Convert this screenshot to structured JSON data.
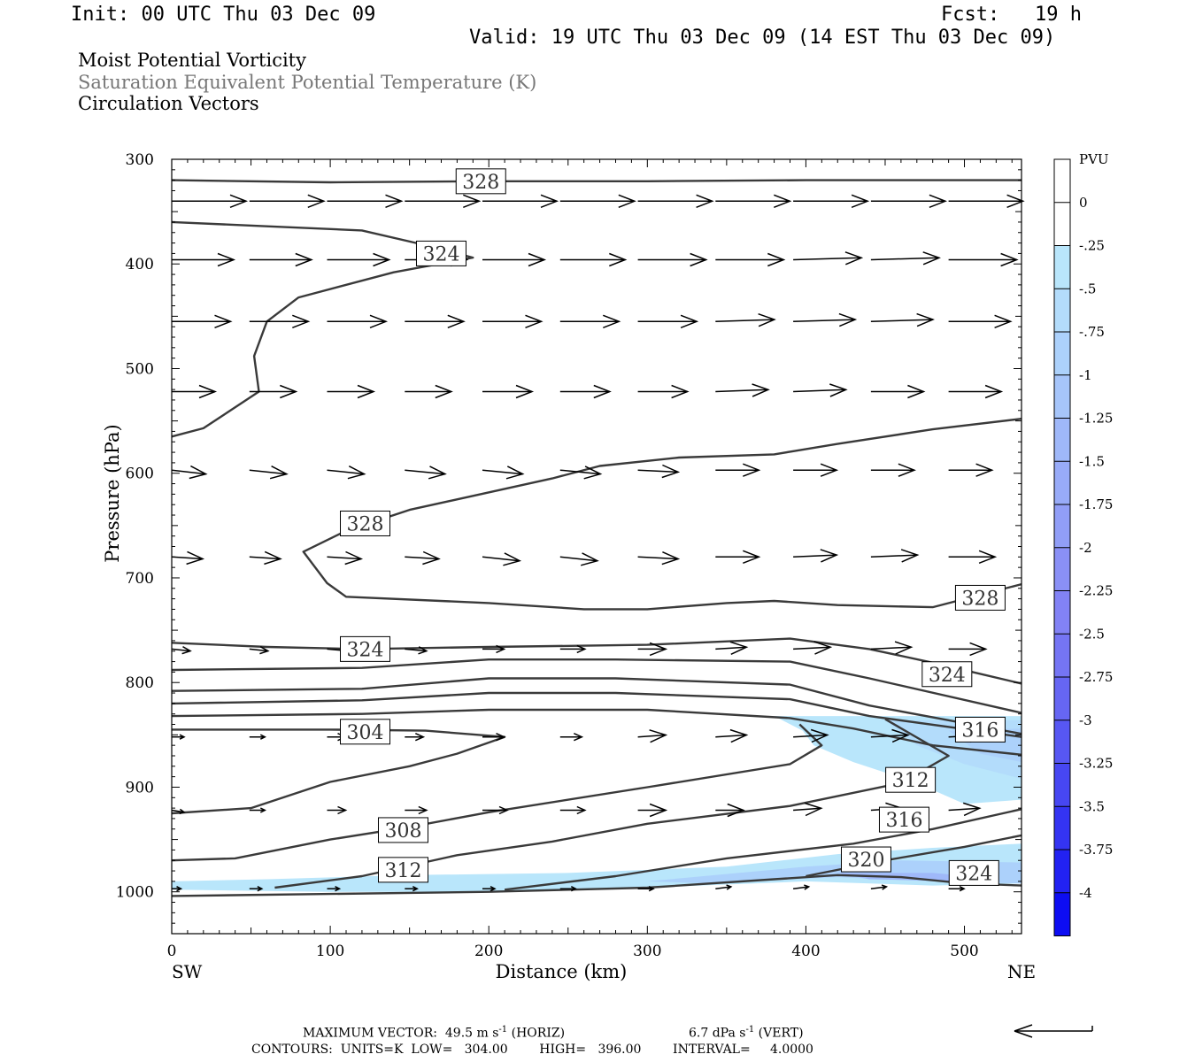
{
  "header": {
    "init": "Init: 00 UTC Thu 03 Dec 09",
    "fcst": "Fcst:   19 h",
    "valid": "Valid: 19 UTC Thu 03 Dec 09 (14 EST Thu 03 Dec 09)"
  },
  "titles": {
    "line1": "Moist Potential Vorticity",
    "line2": "Saturation Equivalent Potential Temperature (K)",
    "line3": "Circulation Vectors"
  },
  "colors": {
    "line1": "#000000",
    "line2": "#777777",
    "line3": "#000000",
    "contour": "#3a3a3a",
    "vector": "#000000"
  },
  "footer": {
    "max_vector": "MAXIMUM VECTOR:  49.5 m s",
    "horiz": "(HORIZ)",
    "vert_val": "6.7 dPa s",
    "vert": "(VERT)",
    "contours": "CONTOURS:  UNITS=K  LOW=   304.00        HIGH=   396.00        INTERVAL=     4.0000"
  },
  "chart_data": {
    "type": "cross-section",
    "xlabel": "Distance (km)",
    "ylabel": "Pressure (hPa)",
    "xlim": [
      0,
      536
    ],
    "ylim": [
      1040,
      300
    ],
    "x_ticks": [
      0,
      100,
      200,
      300,
      400,
      500
    ],
    "y_ticks": [
      300,
      400,
      500,
      600,
      700,
      800,
      900,
      1000
    ],
    "x_end_labels": {
      "left": "SW",
      "right": "NE"
    },
    "colorbar": {
      "unit": "PVU",
      "labels": [
        "0",
        "-.25",
        "-.5",
        "-.75",
        "-1",
        "-1.25",
        "-1.5",
        "-1.75",
        "-2",
        "-2.25",
        "-2.5",
        "-2.75",
        "-3",
        "-3.25",
        "-3.5",
        "-3.75",
        "-4"
      ],
      "colors": [
        "#ffffff",
        "#ffffff",
        "#b9e6fb",
        "#b3dcfb",
        "#acd1fb",
        "#a6c5fa",
        "#9fb8f9",
        "#98abf8",
        "#919ef7",
        "#8a90f6",
        "#8282f5",
        "#7575f4",
        "#6666f3",
        "#5757f3",
        "#4747f2",
        "#3434f2",
        "#2222f2",
        "#0d0df2"
      ]
    },
    "contour_labels": [
      {
        "text": "328",
        "x": 195,
        "y": 321
      },
      {
        "text": "324",
        "x": 170,
        "y": 390
      },
      {
        "text": "328",
        "x": 122,
        "y": 648
      },
      {
        "text": "328",
        "x": 510,
        "y": 719
      },
      {
        "text": "324",
        "x": 122,
        "y": 768
      },
      {
        "text": "324",
        "x": 489,
        "y": 792
      },
      {
        "text": "304",
        "x": 122,
        "y": 847
      },
      {
        "text": "316",
        "x": 510,
        "y": 845
      },
      {
        "text": "312",
        "x": 466,
        "y": 893
      },
      {
        "text": "308",
        "x": 146,
        "y": 941
      },
      {
        "text": "316",
        "x": 462,
        "y": 931
      },
      {
        "text": "312",
        "x": 146,
        "y": 979
      },
      {
        "text": "320",
        "x": 438,
        "y": 969
      },
      {
        "text": "324",
        "x": 506,
        "y": 982
      }
    ],
    "contours": [
      {
        "pts": [
          [
            0,
            320
          ],
          [
            100,
            322
          ],
          [
            200,
            321
          ],
          [
            300,
            321
          ],
          [
            400,
            320
          ],
          [
            536,
            320
          ]
        ]
      },
      {
        "pts": [
          [
            0,
            360
          ],
          [
            60,
            364
          ],
          [
            120,
            368
          ],
          [
            160,
            382
          ],
          [
            190,
            394
          ],
          [
            140,
            408
          ],
          [
            80,
            432
          ],
          [
            60,
            455
          ],
          [
            52,
            488
          ],
          [
            55,
            522
          ],
          [
            20,
            557
          ],
          [
            0,
            565
          ]
        ]
      },
      {
        "pts": [
          [
            536,
            548
          ],
          [
            480,
            558
          ],
          [
            420,
            572
          ],
          [
            380,
            582
          ],
          [
            320,
            585
          ],
          [
            270,
            593
          ],
          [
            240,
            605
          ],
          [
            150,
            635
          ],
          [
            110,
            655
          ],
          [
            83,
            675
          ],
          [
            98,
            705
          ],
          [
            110,
            718
          ],
          [
            200,
            724
          ],
          [
            260,
            730
          ],
          [
            300,
            730
          ],
          [
            350,
            724
          ],
          [
            380,
            722
          ],
          [
            420,
            726
          ],
          [
            480,
            728
          ],
          [
            536,
            706
          ]
        ]
      },
      {
        "pts": [
          [
            0,
            762
          ],
          [
            60,
            766
          ],
          [
            120,
            768
          ],
          [
            200,
            766
          ],
          [
            300,
            764
          ],
          [
            390,
            758
          ],
          [
            440,
            768
          ],
          [
            480,
            781
          ],
          [
            536,
            801
          ]
        ]
      },
      {
        "pts": [
          [
            0,
            788
          ],
          [
            120,
            786
          ],
          [
            200,
            778
          ],
          [
            280,
            778
          ],
          [
            390,
            780
          ],
          [
            440,
            796
          ],
          [
            536,
            829
          ]
        ]
      },
      {
        "pts": [
          [
            0,
            808
          ],
          [
            120,
            806
          ],
          [
            200,
            796
          ],
          [
            280,
            796
          ],
          [
            390,
            802
          ],
          [
            440,
            822
          ],
          [
            536,
            849
          ]
        ]
      },
      {
        "pts": [
          [
            0,
            820
          ],
          [
            120,
            817
          ],
          [
            200,
            810
          ],
          [
            280,
            810
          ],
          [
            390,
            816
          ],
          [
            440,
            832
          ],
          [
            536,
            852
          ]
        ]
      },
      {
        "pts": [
          [
            0,
            832
          ],
          [
            120,
            830
          ],
          [
            200,
            826
          ],
          [
            300,
            826
          ],
          [
            390,
            834
          ],
          [
            430,
            844
          ],
          [
            480,
            860
          ],
          [
            536,
            869
          ]
        ]
      },
      {
        "pts": [
          [
            0,
            845
          ],
          [
            100,
            845
          ],
          [
            160,
            846
          ],
          [
            210,
            852
          ],
          [
            180,
            868
          ],
          [
            150,
            880
          ],
          [
            100,
            895
          ],
          [
            50,
            920
          ],
          [
            0,
            925
          ]
        ]
      },
      {
        "pts": [
          [
            0,
            970
          ],
          [
            40,
            968
          ],
          [
            100,
            950
          ],
          [
            150,
            938
          ],
          [
            200,
            924
          ],
          [
            300,
            900
          ],
          [
            390,
            878
          ],
          [
            410,
            860
          ],
          [
            396,
            840
          ]
        ]
      },
      {
        "pts": [
          [
            65,
            996
          ],
          [
            120,
            985
          ],
          [
            180,
            965
          ],
          [
            240,
            952
          ],
          [
            300,
            935
          ],
          [
            390,
            918
          ],
          [
            460,
            896
          ],
          [
            490,
            870
          ],
          [
            450,
            835
          ]
        ]
      },
      {
        "pts": [
          [
            210,
            998
          ],
          [
            280,
            985
          ],
          [
            350,
            968
          ],
          [
            430,
            954
          ],
          [
            480,
            940
          ],
          [
            536,
            921
          ]
        ]
      },
      {
        "pts": [
          [
            400,
            985
          ],
          [
            450,
            970
          ],
          [
            500,
            957
          ],
          [
            536,
            946
          ]
        ]
      },
      {
        "pts": [
          [
            0,
            1004
          ],
          [
            100,
            1002
          ],
          [
            200,
            1000
          ],
          [
            300,
            996
          ],
          [
            380,
            988
          ],
          [
            420,
            984
          ],
          [
            460,
            986
          ],
          [
            500,
            992
          ],
          [
            536,
            994
          ]
        ]
      }
    ],
    "shaded": [
      {
        "level": "-.25",
        "pts": [
          [
            380,
            832
          ],
          [
            536,
            832
          ],
          [
            536,
            912
          ],
          [
            500,
            916
          ],
          [
            470,
            896
          ],
          [
            430,
            876
          ],
          [
            405,
            860
          ],
          [
            398,
            846
          ]
        ]
      },
      {
        "level": "-.5",
        "pts": [
          [
            450,
            836
          ],
          [
            536,
            836
          ],
          [
            536,
            892
          ],
          [
            500,
            878
          ],
          [
            470,
            860
          ]
        ]
      },
      {
        "level": "-.75",
        "pts": [
          [
            490,
            846
          ],
          [
            536,
            844
          ],
          [
            536,
            876
          ],
          [
            510,
            868
          ]
        ]
      },
      {
        "level": "-.25",
        "pts": [
          [
            0,
            990
          ],
          [
            60,
            988
          ],
          [
            150,
            984
          ],
          [
            250,
            982
          ],
          [
            350,
            976
          ],
          [
            420,
            964
          ],
          [
            480,
            958
          ],
          [
            536,
            954
          ],
          [
            536,
            992
          ],
          [
            480,
            994
          ],
          [
            400,
            990
          ],
          [
            300,
            996
          ],
          [
            200,
            1000
          ],
          [
            100,
            1000
          ],
          [
            0,
            998
          ]
        ]
      },
      {
        "level": "-.75",
        "pts": [
          [
            300,
            990
          ],
          [
            400,
            976
          ],
          [
            460,
            970
          ],
          [
            536,
            972
          ],
          [
            536,
            992
          ],
          [
            480,
            990
          ],
          [
            420,
            986
          ],
          [
            340,
            992
          ]
        ]
      },
      {
        "level": "-1.25",
        "pts": [
          [
            420,
            982
          ],
          [
            480,
            982
          ],
          [
            510,
            986
          ],
          [
            500,
            990
          ],
          [
            440,
            988
          ]
        ]
      }
    ],
    "vectors": [
      {
        "p": 340,
        "x": [
          0,
          49,
          98,
          147,
          196,
          245,
          294,
          343,
          392,
          441,
          490
        ],
        "u": [
          48,
          48,
          48,
          48,
          48,
          48,
          48,
          48,
          48,
          48,
          48
        ],
        "w": [
          0,
          0,
          0,
          0,
          0,
          0,
          0,
          0,
          0,
          0,
          0
        ]
      },
      {
        "p": 396,
        "x": [
          0,
          49,
          98,
          147,
          196,
          245,
          294,
          343,
          392,
          441,
          490
        ],
        "u": [
          40,
          40,
          40,
          40,
          40,
          42,
          44,
          44,
          44,
          44,
          44
        ],
        "w": [
          0,
          0,
          0,
          0,
          0,
          0,
          0,
          0,
          -1,
          -1,
          0
        ]
      },
      {
        "p": 455,
        "x": [
          0,
          49,
          98,
          147,
          196,
          245,
          294,
          343,
          392,
          441,
          490
        ],
        "u": [
          38,
          38,
          38,
          38,
          38,
          38,
          38,
          38,
          40,
          40,
          40
        ],
        "w": [
          0,
          0,
          0,
          0,
          0,
          0,
          0,
          -1,
          -1,
          -1,
          0
        ]
      },
      {
        "p": 522,
        "x": [
          0,
          49,
          98,
          147,
          196,
          245,
          294,
          343,
          392,
          441,
          490
        ],
        "u": [
          28,
          30,
          30,
          30,
          32,
          32,
          32,
          34,
          34,
          34,
          34
        ],
        "w": [
          0,
          0,
          0,
          0,
          0,
          0,
          0,
          -1,
          -1,
          0,
          0
        ]
      },
      {
        "p": 597,
        "x": [
          0,
          49,
          98,
          147,
          196,
          245,
          294,
          343,
          392,
          441,
          490
        ],
        "u": [
          22,
          24,
          24,
          26,
          26,
          26,
          26,
          28,
          28,
          28,
          28
        ],
        "w": [
          2,
          2,
          2,
          2,
          2,
          2,
          1,
          0,
          0,
          0,
          0
        ]
      },
      {
        "p": 680,
        "x": [
          0,
          49,
          98,
          147,
          196,
          245,
          294,
          343,
          392,
          441,
          490
        ],
        "u": [
          20,
          20,
          22,
          22,
          24,
          24,
          26,
          28,
          28,
          30,
          30
        ],
        "w": [
          1,
          1,
          1,
          1,
          2,
          2,
          1,
          0,
          -1,
          -1,
          0
        ]
      },
      {
        "p": 768,
        "x": [
          0,
          49,
          98,
          147,
          196,
          245,
          294,
          343,
          392,
          441,
          490
        ],
        "u": [
          12,
          12,
          14,
          14,
          14,
          16,
          18,
          20,
          24,
          26,
          24
        ],
        "w": [
          1,
          1,
          1,
          1,
          0,
          0,
          0,
          -1,
          -1,
          -1,
          0
        ]
      },
      {
        "p": 852,
        "x": [
          0,
          49,
          98,
          147,
          196,
          245,
          294,
          343,
          392,
          441,
          490
        ],
        "u": [
          8,
          10,
          12,
          12,
          14,
          14,
          18,
          20,
          22,
          24,
          24
        ],
        "w": [
          0,
          0,
          0,
          0,
          0,
          0,
          -1,
          -1,
          -1,
          -1,
          -1
        ]
      },
      {
        "p": 922,
        "x": [
          0,
          49,
          98,
          147,
          196,
          245,
          294,
          343,
          392,
          441,
          490
        ],
        "u": [
          8,
          10,
          12,
          14,
          16,
          16,
          18,
          18,
          18,
          20,
          20
        ],
        "w": [
          1,
          0,
          0,
          0,
          0,
          0,
          0,
          0,
          -1,
          -1,
          -1
        ]
      },
      {
        "p": 997,
        "x": [
          0,
          49,
          98,
          147,
          196,
          245,
          294,
          343,
          392,
          441,
          490
        ],
        "u": [
          6,
          8,
          8,
          8,
          8,
          10,
          10,
          10,
          10,
          10,
          10
        ],
        "w": [
          0,
          0,
          0,
          0,
          0,
          0,
          0,
          -1,
          -1,
          -1,
          0
        ]
      }
    ]
  }
}
